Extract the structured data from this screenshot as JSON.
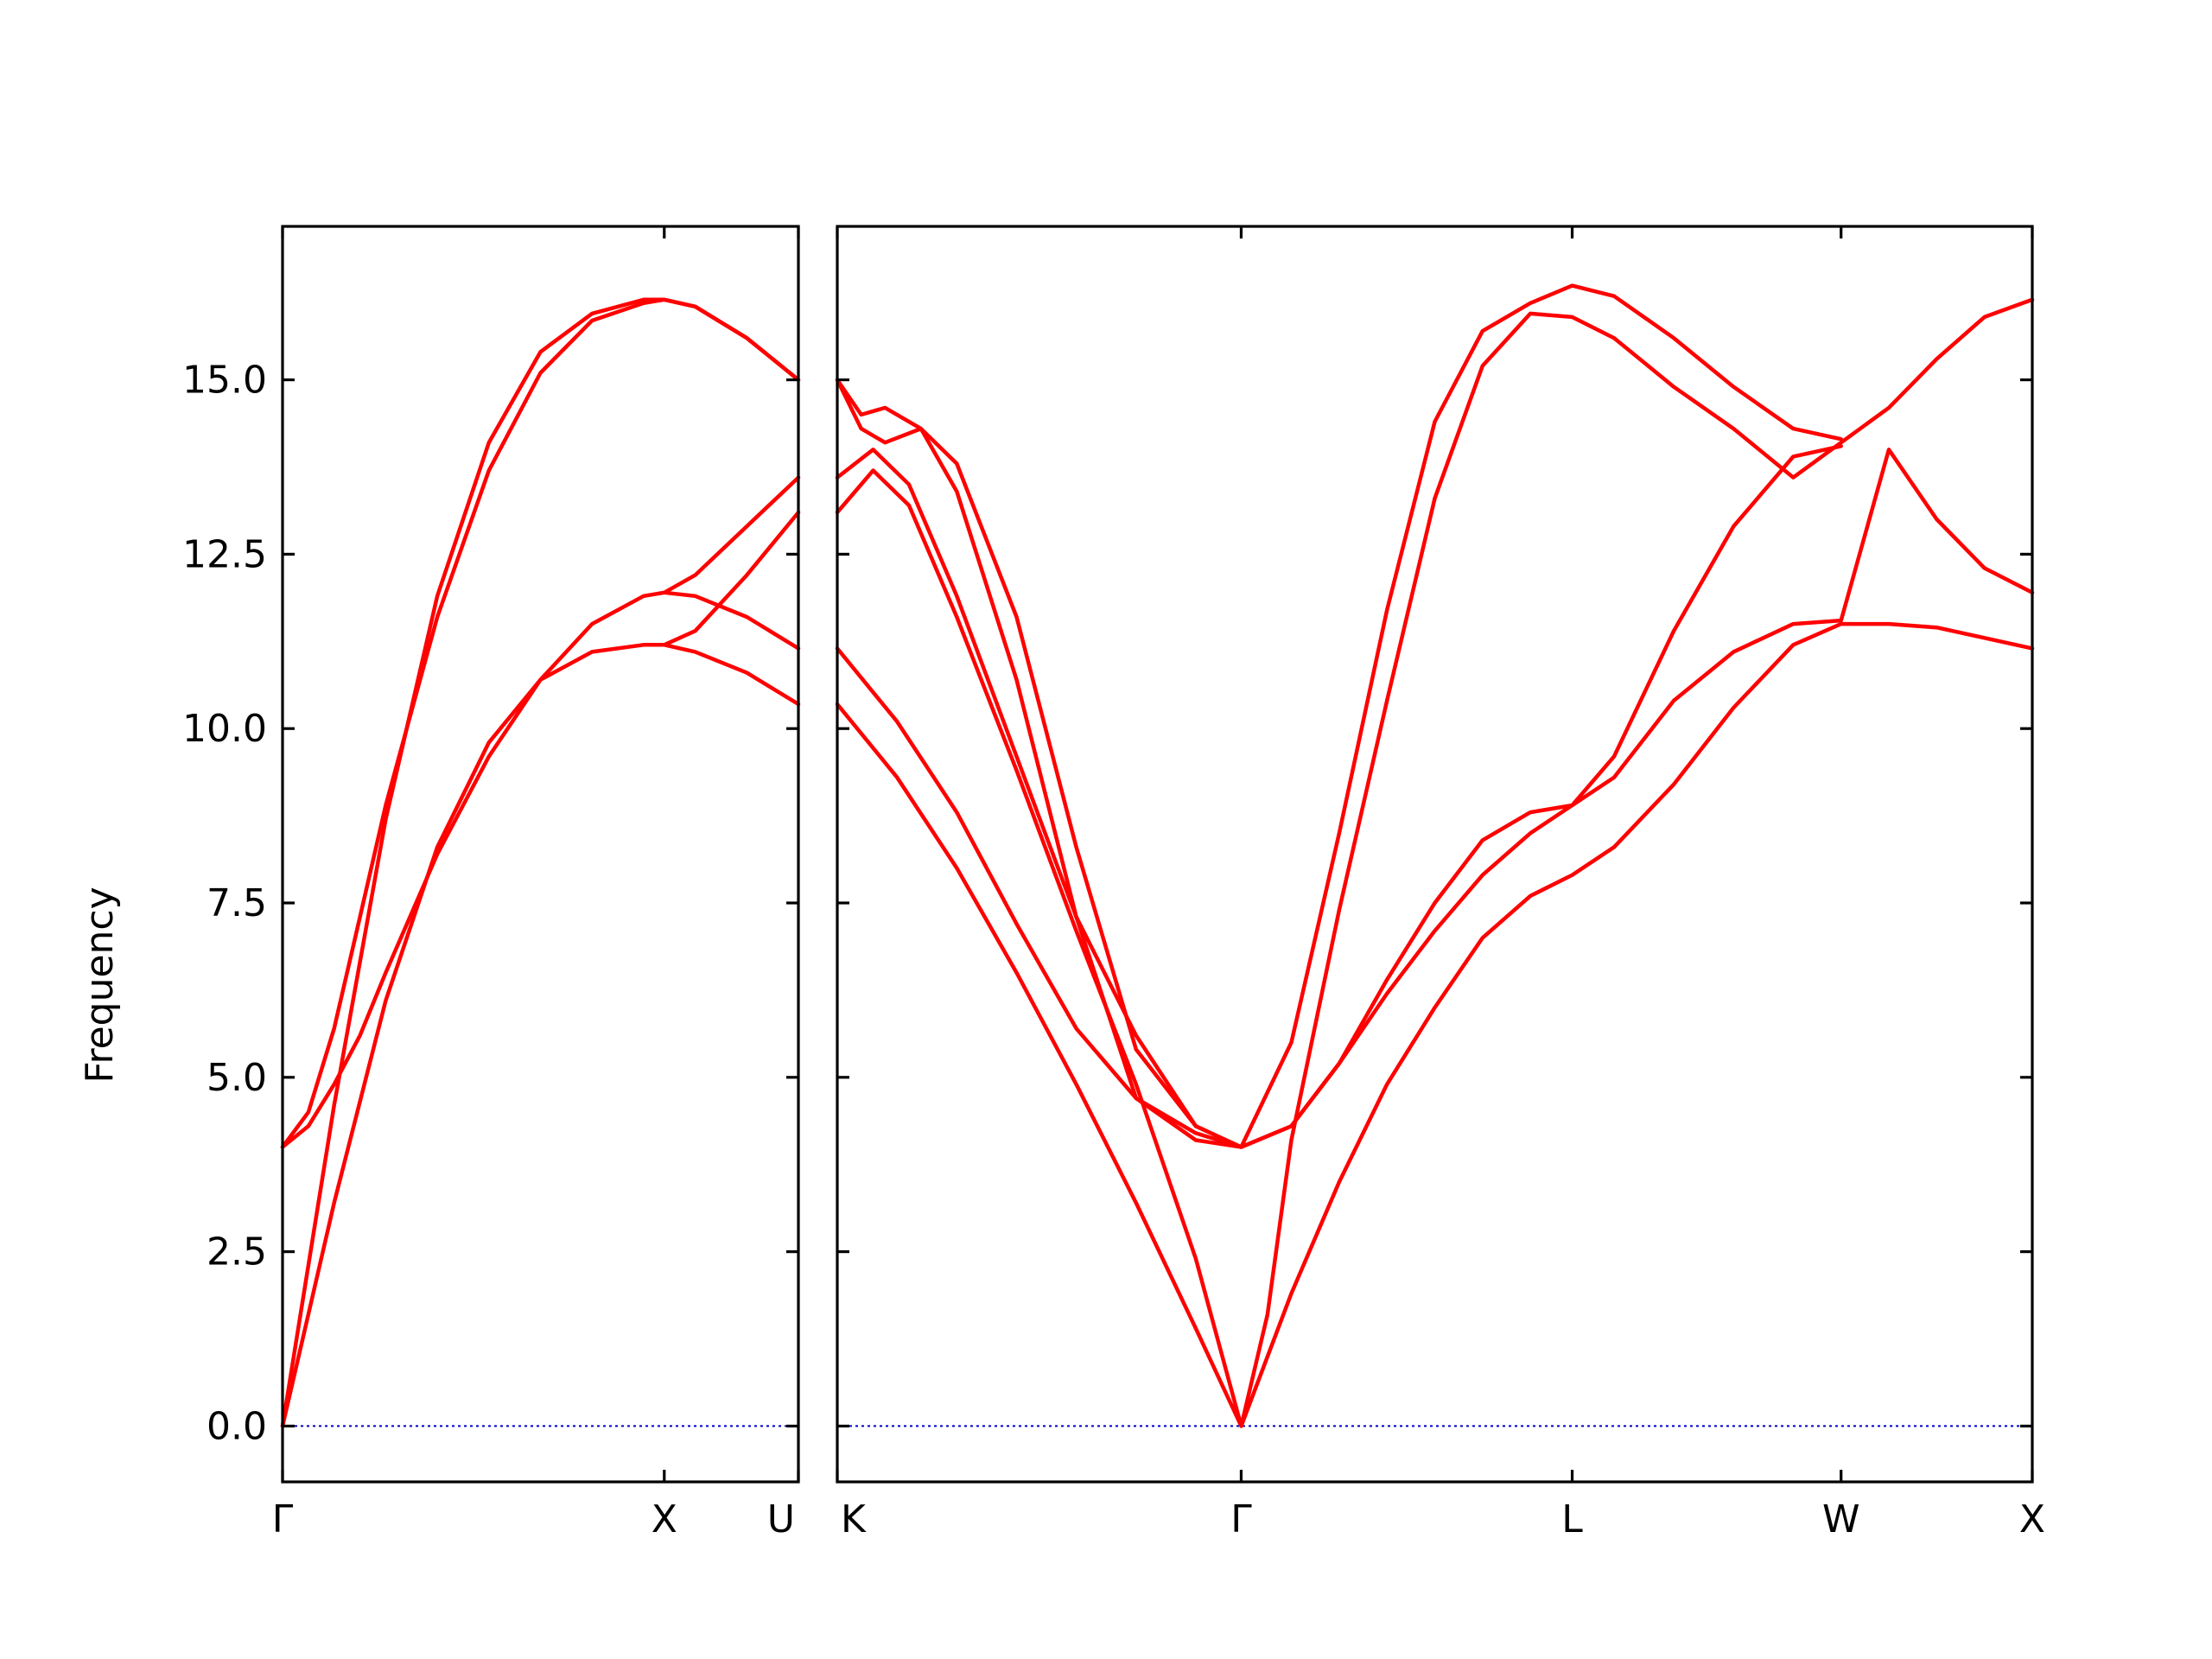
{
  "chart_data": {
    "type": "line",
    "ylabel": "Frequency",
    "ylim": [
      -0.8,
      17.2
    ],
    "yticks": [
      0.0,
      2.5,
      5.0,
      7.5,
      10.0,
      12.5,
      15.0
    ],
    "ytick_labels": [
      "0.0",
      "2.5",
      "5.0",
      "7.5",
      "10.0",
      "12.5",
      "15.0"
    ],
    "colors": {
      "bands": "#ff0000",
      "zero_line": "#0000cc",
      "axes": "#000000"
    },
    "zero_line": {
      "y": 0.0,
      "style": "dotted"
    },
    "panels": [
      {
        "name": "Γ-X-U",
        "xlim": [
          0,
          1
        ],
        "ticks": [
          {
            "x": 0,
            "label": "Γ"
          },
          {
            "x": 0.74,
            "label": "X"
          },
          {
            "x": 1,
            "label": "U"
          }
        ],
        "series": [
          {
            "x": [
              0,
              0.1,
              0.2,
              0.3,
              0.4,
              0.5,
              0.6,
              0.7,
              0.74,
              0.8,
              0.9,
              1.0
            ],
            "y": [
              0.0,
              3.2,
              6.1,
              8.3,
              9.8,
              10.7,
              11.1,
              11.2,
              11.2,
              11.1,
              10.8,
              10.35
            ]
          },
          {
            "x": [
              0,
              0.1,
              0.2,
              0.3,
              0.4,
              0.5,
              0.6,
              0.7,
              0.74,
              0.8,
              0.9,
              1.0
            ],
            "y": [
              0.0,
              4.6,
              8.7,
              11.9,
              14.1,
              15.4,
              15.95,
              16.15,
              16.15,
              16.05,
              15.6,
              15.0
            ]
          },
          {
            "x": [
              0,
              0.05,
              0.1,
              0.15,
              0.2,
              0.3,
              0.4,
              0.5,
              0.6,
              0.7,
              0.74,
              0.8,
              0.9,
              1.0
            ],
            "y": [
              4.0,
              4.3,
              4.9,
              5.6,
              6.5,
              8.2,
              9.6,
              10.7,
              11.5,
              11.9,
              11.95,
              11.9,
              11.6,
              11.15
            ]
          },
          {
            "x": [
              0,
              0.05,
              0.1,
              0.15,
              0.2,
              0.3,
              0.4,
              0.5,
              0.6,
              0.7,
              0.74,
              0.8,
              0.9,
              1.0
            ],
            "y": [
              4.0,
              4.5,
              5.7,
              7.3,
              8.9,
              11.6,
              13.7,
              15.1,
              15.85,
              16.1,
              16.15,
              16.05,
              15.6,
              15.0
            ]
          },
          {
            "x": [
              0.74,
              0.8,
              0.9,
              1.0
            ],
            "y": [
              11.95,
              12.2,
              12.9,
              13.6
            ]
          },
          {
            "x": [
              0.74,
              0.8,
              0.9,
              1.0
            ],
            "y": [
              11.2,
              11.4,
              12.2,
              13.1
            ]
          }
        ]
      },
      {
        "name": "K-Γ-L-W-X",
        "xlim": [
          0,
          1
        ],
        "ticks": [
          {
            "x": 0,
            "label": "K"
          },
          {
            "x": 0.338,
            "label": "Γ"
          },
          {
            "x": 0.615,
            "label": "L"
          },
          {
            "x": 0.84,
            "label": "W"
          },
          {
            "x": 1,
            "label": "X"
          }
        ],
        "series": [
          {
            "x": [
              0,
              0.05,
              0.1,
              0.15,
              0.2,
              0.25,
              0.3,
              0.338,
              0.38,
              0.42,
              0.46,
              0.5,
              0.54,
              0.58,
              0.615,
              0.65,
              0.7,
              0.75,
              0.8,
              0.84,
              0.88,
              0.92,
              0.96,
              1.0
            ],
            "y": [
              10.35,
              9.3,
              8.0,
              6.5,
              4.9,
              3.2,
              1.4,
              0.0,
              1.9,
              3.5,
              4.9,
              6.0,
              7.0,
              7.6,
              7.9,
              8.3,
              9.2,
              10.3,
              11.2,
              11.5,
              11.5,
              11.45,
              11.3,
              11.15
            ]
          },
          {
            "x": [
              0,
              0.05,
              0.1,
              0.15,
              0.2,
              0.25,
              0.3,
              0.338,
              0.38,
              0.42,
              0.46,
              0.5,
              0.54,
              0.58,
              0.615,
              0.65,
              0.7,
              0.75,
              0.8,
              0.84,
              0.88,
              0.92,
              0.96,
              1.0
            ],
            "y": [
              11.15,
              10.1,
              8.8,
              7.2,
              5.7,
              4.7,
              4.2,
              4.0,
              4.3,
              5.2,
              6.2,
              7.1,
              7.9,
              8.5,
              8.9,
              9.3,
              10.4,
              11.1,
              11.5,
              11.55,
              14.0,
              13.0,
              12.3,
              11.95
            ]
          },
          {
            "x": [
              0,
              0.03,
              0.06,
              0.1,
              0.15,
              0.2,
              0.25,
              0.3,
              0.338,
              0.36,
              0.38,
              0.42,
              0.46,
              0.5,
              0.54,
              0.58,
              0.615,
              0.65,
              0.7,
              0.75,
              0.8,
              0.84,
              0.88,
              0.92,
              0.96,
              1.0
            ],
            "y": [
              13.1,
              13.7,
              13.2,
              11.6,
              9.4,
              7.1,
              4.9,
              2.4,
              0.0,
              1.6,
              4.1,
              7.4,
              10.4,
              13.3,
              15.2,
              15.95,
              15.9,
              15.6,
              14.9,
              14.3,
              13.6,
              14.1,
              14.6,
              15.3,
              15.9,
              16.15
            ]
          },
          {
            "x": [
              0,
              0.03,
              0.06,
              0.1,
              0.15,
              0.2,
              0.25,
              0.3,
              0.338,
              0.38,
              0.42,
              0.46,
              0.5,
              0.54,
              0.58,
              0.615,
              0.65,
              0.7,
              0.75,
              0.8,
              0.84
            ],
            "y": [
              13.6,
              14.0,
              13.5,
              11.9,
              9.6,
              7.3,
              5.6,
              4.3,
              4.0,
              4.3,
              5.2,
              6.4,
              7.5,
              8.4,
              8.8,
              8.9,
              9.6,
              11.4,
              12.9,
              13.9,
              14.05
            ]
          },
          {
            "x": [
              0,
              0.02,
              0.04,
              0.07,
              0.1,
              0.15,
              0.2,
              0.25,
              0.3,
              0.338,
              0.38,
              0.42,
              0.46,
              0.5,
              0.54,
              0.58,
              0.615,
              0.65,
              0.7,
              0.75,
              0.8,
              0.84
            ],
            "y": [
              15.0,
              14.5,
              14.6,
              14.3,
              13.4,
              10.7,
              7.3,
              4.7,
              4.1,
              4.0,
              5.5,
              8.5,
              11.7,
              14.4,
              15.7,
              16.1,
              16.35,
              16.2,
              15.6,
              14.9,
              14.3,
              14.15
            ]
          },
          {
            "x": [
              0,
              0.02,
              0.04,
              0.07,
              0.1,
              0.15,
              0.2,
              0.25,
              0.3,
              0.338
            ],
            "y": [
              15.0,
              14.3,
              14.1,
              14.3,
              13.8,
              11.6,
              8.3,
              5.4,
              4.3,
              4.0
            ]
          }
        ]
      }
    ]
  }
}
